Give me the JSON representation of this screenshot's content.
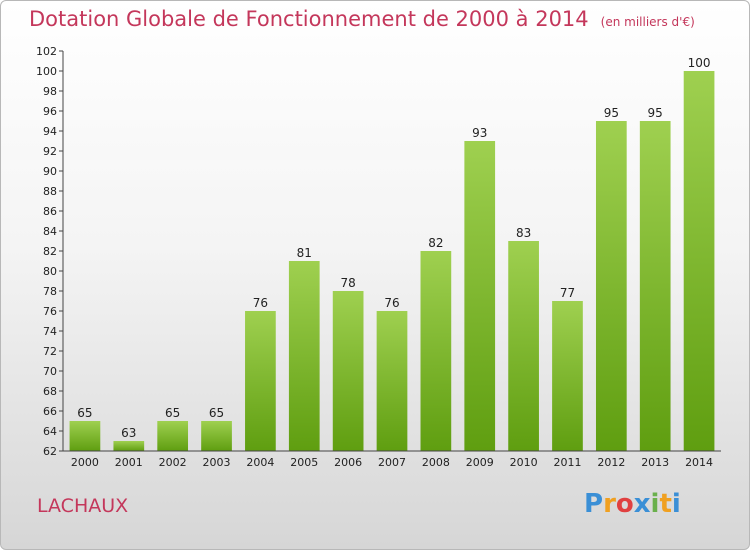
{
  "title": "Dotation Globale de Fonctionnement de 2000 à 2014",
  "unit_note": "(en milliers d'€)",
  "commune": "LACHAUX",
  "logo": {
    "letters": [
      "P",
      "r",
      "o",
      "x",
      "i",
      "t",
      "i"
    ],
    "colors": [
      "#3a8fd6",
      "#f0a020",
      "#e04040",
      "#3a8fd6",
      "#6ab04c",
      "#f0a020",
      "#3a8fd6"
    ]
  },
  "colors": {
    "bar_light": "#9fd050",
    "bar_dark": "#5f9e10",
    "title": "#c4375b"
  },
  "chart_data": {
    "type": "bar",
    "categories": [
      "2000",
      "2001",
      "2002",
      "2003",
      "2004",
      "2005",
      "2006",
      "2007",
      "2008",
      "2009",
      "2010",
      "2011",
      "2012",
      "2013",
      "2014"
    ],
    "values": [
      65,
      63,
      65,
      65,
      76,
      81,
      78,
      76,
      82,
      93,
      83,
      77,
      95,
      95,
      100
    ],
    "ylim": [
      62,
      102
    ],
    "yticks": [
      62,
      64,
      66,
      68,
      70,
      72,
      74,
      76,
      78,
      80,
      82,
      84,
      86,
      88,
      90,
      92,
      94,
      96,
      98,
      100,
      102
    ],
    "grid": false
  }
}
